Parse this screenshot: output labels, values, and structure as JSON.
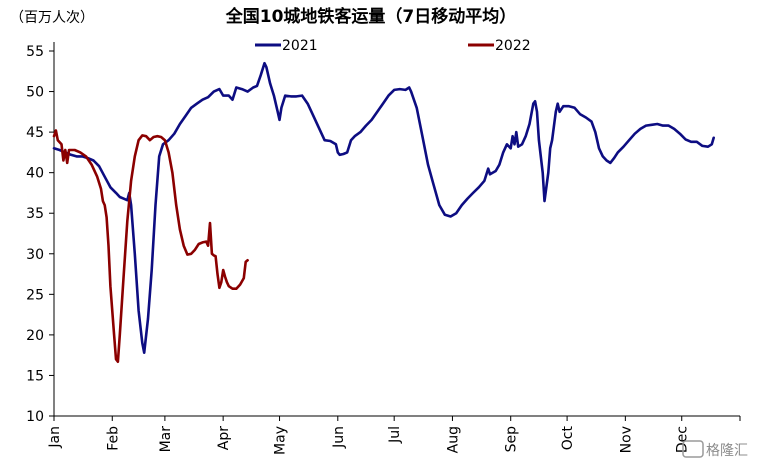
{
  "chart_data": {
    "type": "line",
    "title": "全国10城地铁客运量（7日移动平均）",
    "unit_label": "（百万人次）",
    "ylim": [
      10,
      55
    ],
    "y_ticks": [
      10,
      15,
      20,
      25,
      30,
      35,
      40,
      45,
      50,
      55
    ],
    "x_ticks": [
      "Jan",
      "Feb",
      "Mar",
      "Apr",
      "May",
      "Jun",
      "Jul",
      "Aug",
      "Sep",
      "Oct",
      "Nov",
      "Dec"
    ],
    "grid": false,
    "legend_position": "top",
    "watermark": "格隆汇",
    "series": [
      {
        "name": "2021",
        "color": "#0d0d82",
        "points": [
          [
            0,
            43
          ],
          [
            3,
            42.8
          ],
          [
            6,
            42.5
          ],
          [
            9,
            42.2
          ],
          [
            12,
            42
          ],
          [
            15,
            42
          ],
          [
            18,
            41.8
          ],
          [
            21,
            41.5
          ],
          [
            24,
            40.8
          ],
          [
            27,
            39.5
          ],
          [
            30,
            38.2
          ],
          [
            33,
            37.5
          ],
          [
            35,
            37
          ],
          [
            37,
            36.8
          ],
          [
            39,
            36.6
          ],
          [
            40,
            37.5
          ],
          [
            41,
            36
          ],
          [
            43,
            30
          ],
          [
            45,
            23
          ],
          [
            47,
            19
          ],
          [
            48,
            17.8
          ],
          [
            50,
            22
          ],
          [
            52,
            28
          ],
          [
            54,
            36
          ],
          [
            56,
            42
          ],
          [
            58,
            43.5
          ],
          [
            61,
            44
          ],
          [
            64,
            44.8
          ],
          [
            67,
            46
          ],
          [
            70,
            47
          ],
          [
            73,
            48
          ],
          [
            76,
            48.5
          ],
          [
            79,
            49
          ],
          [
            82,
            49.3
          ],
          [
            85,
            50
          ],
          [
            88,
            50.3
          ],
          [
            90,
            49.5
          ],
          [
            93,
            49.5
          ],
          [
            95,
            49
          ],
          [
            97,
            50.5
          ],
          [
            100,
            50.3
          ],
          [
            103,
            50
          ],
          [
            106,
            50.5
          ],
          [
            108,
            50.7
          ],
          [
            110,
            52
          ],
          [
            112,
            53.5
          ],
          [
            113,
            53
          ],
          [
            115,
            51
          ],
          [
            117,
            49.5
          ],
          [
            119,
            47.5
          ],
          [
            120,
            46.5
          ],
          [
            121,
            48
          ],
          [
            123,
            49.5
          ],
          [
            126,
            49.4
          ],
          [
            129,
            49.4
          ],
          [
            132,
            49.5
          ],
          [
            135,
            48.5
          ],
          [
            138,
            47
          ],
          [
            141,
            45.5
          ],
          [
            144,
            44
          ],
          [
            147,
            43.9
          ],
          [
            150,
            43.5
          ],
          [
            151,
            42.5
          ],
          [
            152,
            42.2
          ],
          [
            154,
            42.3
          ],
          [
            156,
            42.5
          ],
          [
            158,
            44
          ],
          [
            160,
            44.5
          ],
          [
            163,
            45
          ],
          [
            166,
            45.8
          ],
          [
            169,
            46.5
          ],
          [
            172,
            47.5
          ],
          [
            175,
            48.5
          ],
          [
            178,
            49.5
          ],
          [
            181,
            50.2
          ],
          [
            184,
            50.3
          ],
          [
            187,
            50.2
          ],
          [
            189,
            50.5
          ],
          [
            190,
            50
          ],
          [
            193,
            48
          ],
          [
            196,
            44.5
          ],
          [
            199,
            41
          ],
          [
            202,
            38.5
          ],
          [
            205,
            36
          ],
          [
            208,
            34.8
          ],
          [
            211,
            34.6
          ],
          [
            214,
            35
          ],
          [
            217,
            36
          ],
          [
            220,
            36.8
          ],
          [
            223,
            37.5
          ],
          [
            226,
            38.2
          ],
          [
            229,
            39
          ],
          [
            231,
            40.5
          ],
          [
            232,
            39.8
          ],
          [
            235,
            40.2
          ],
          [
            237,
            41
          ],
          [
            239,
            42.5
          ],
          [
            241,
            43.5
          ],
          [
            243,
            43
          ],
          [
            244,
            44.5
          ],
          [
            245,
            43.5
          ],
          [
            246,
            45
          ],
          [
            247,
            43.2
          ],
          [
            249,
            43.5
          ],
          [
            251,
            44.5
          ],
          [
            253,
            46
          ],
          [
            255,
            48.5
          ],
          [
            256,
            48.8
          ],
          [
            257,
            47.5
          ],
          [
            258,
            44
          ],
          [
            260,
            40
          ],
          [
            261,
            36.5
          ],
          [
            263,
            40
          ],
          [
            264,
            43
          ],
          [
            265,
            44
          ],
          [
            267,
            47.5
          ],
          [
            268,
            48.5
          ],
          [
            269,
            47.5
          ],
          [
            271,
            48.2
          ],
          [
            274,
            48.2
          ],
          [
            277,
            48
          ],
          [
            280,
            47.2
          ],
          [
            283,
            46.8
          ],
          [
            286,
            46.3
          ],
          [
            288,
            45
          ],
          [
            290,
            43
          ],
          [
            292,
            42
          ],
          [
            294,
            41.5
          ],
          [
            296,
            41.2
          ],
          [
            298,
            41.8
          ],
          [
            300,
            42.5
          ],
          [
            303,
            43.2
          ],
          [
            306,
            44
          ],
          [
            309,
            44.8
          ],
          [
            312,
            45.4
          ],
          [
            315,
            45.8
          ],
          [
            318,
            45.9
          ],
          [
            321,
            46
          ],
          [
            324,
            45.8
          ],
          [
            327,
            45.8
          ],
          [
            330,
            45.4
          ],
          [
            333,
            44.8
          ],
          [
            336,
            44.1
          ],
          [
            339,
            43.8
          ],
          [
            342,
            43.8
          ],
          [
            345,
            43.3
          ],
          [
            348,
            43.2
          ],
          [
            350,
            43.5
          ],
          [
            351,
            44.3
          ]
        ]
      },
      {
        "name": "2022",
        "color": "#8b0000",
        "points": [
          [
            0,
            44.5
          ],
          [
            1,
            45.2
          ],
          [
            2,
            44
          ],
          [
            4,
            43.5
          ],
          [
            5,
            41.5
          ],
          [
            6,
            42.8
          ],
          [
            7,
            41.2
          ],
          [
            8,
            42.8
          ],
          [
            11,
            42.8
          ],
          [
            14,
            42.5
          ],
          [
            17,
            42
          ],
          [
            20,
            41
          ],
          [
            23,
            39.5
          ],
          [
            25,
            38
          ],
          [
            26,
            36.5
          ],
          [
            27,
            36
          ],
          [
            28,
            34.5
          ],
          [
            29,
            31
          ],
          [
            30,
            26
          ],
          [
            32,
            20
          ],
          [
            33,
            17
          ],
          [
            34,
            16.7
          ],
          [
            35,
            20
          ],
          [
            37,
            27
          ],
          [
            39,
            34
          ],
          [
            41,
            39
          ],
          [
            43,
            42
          ],
          [
            45,
            44
          ],
          [
            47,
            44.6
          ],
          [
            49,
            44.5
          ],
          [
            51,
            44
          ],
          [
            53,
            44.4
          ],
          [
            55,
            44.5
          ],
          [
            57,
            44.4
          ],
          [
            59,
            44
          ],
          [
            61,
            42.5
          ],
          [
            63,
            40
          ],
          [
            65,
            36
          ],
          [
            67,
            33
          ],
          [
            69,
            31
          ],
          [
            71,
            29.9
          ],
          [
            73,
            30
          ],
          [
            75,
            30.5
          ],
          [
            77,
            31.2
          ],
          [
            79,
            31.4
          ],
          [
            81,
            31.5
          ],
          [
            82,
            31
          ],
          [
            83,
            33.8
          ],
          [
            84,
            30
          ],
          [
            85,
            29.8
          ],
          [
            86,
            29.7
          ],
          [
            87,
            27.5
          ],
          [
            88,
            25.8
          ],
          [
            89,
            26.5
          ],
          [
            90,
            28
          ],
          [
            91,
            27.2
          ],
          [
            92,
            26.5
          ],
          [
            93,
            26
          ],
          [
            95,
            25.7
          ],
          [
            97,
            25.7
          ],
          [
            99,
            26.2
          ],
          [
            101,
            27
          ],
          [
            102,
            29
          ],
          [
            103,
            29.2
          ]
        ]
      }
    ]
  }
}
